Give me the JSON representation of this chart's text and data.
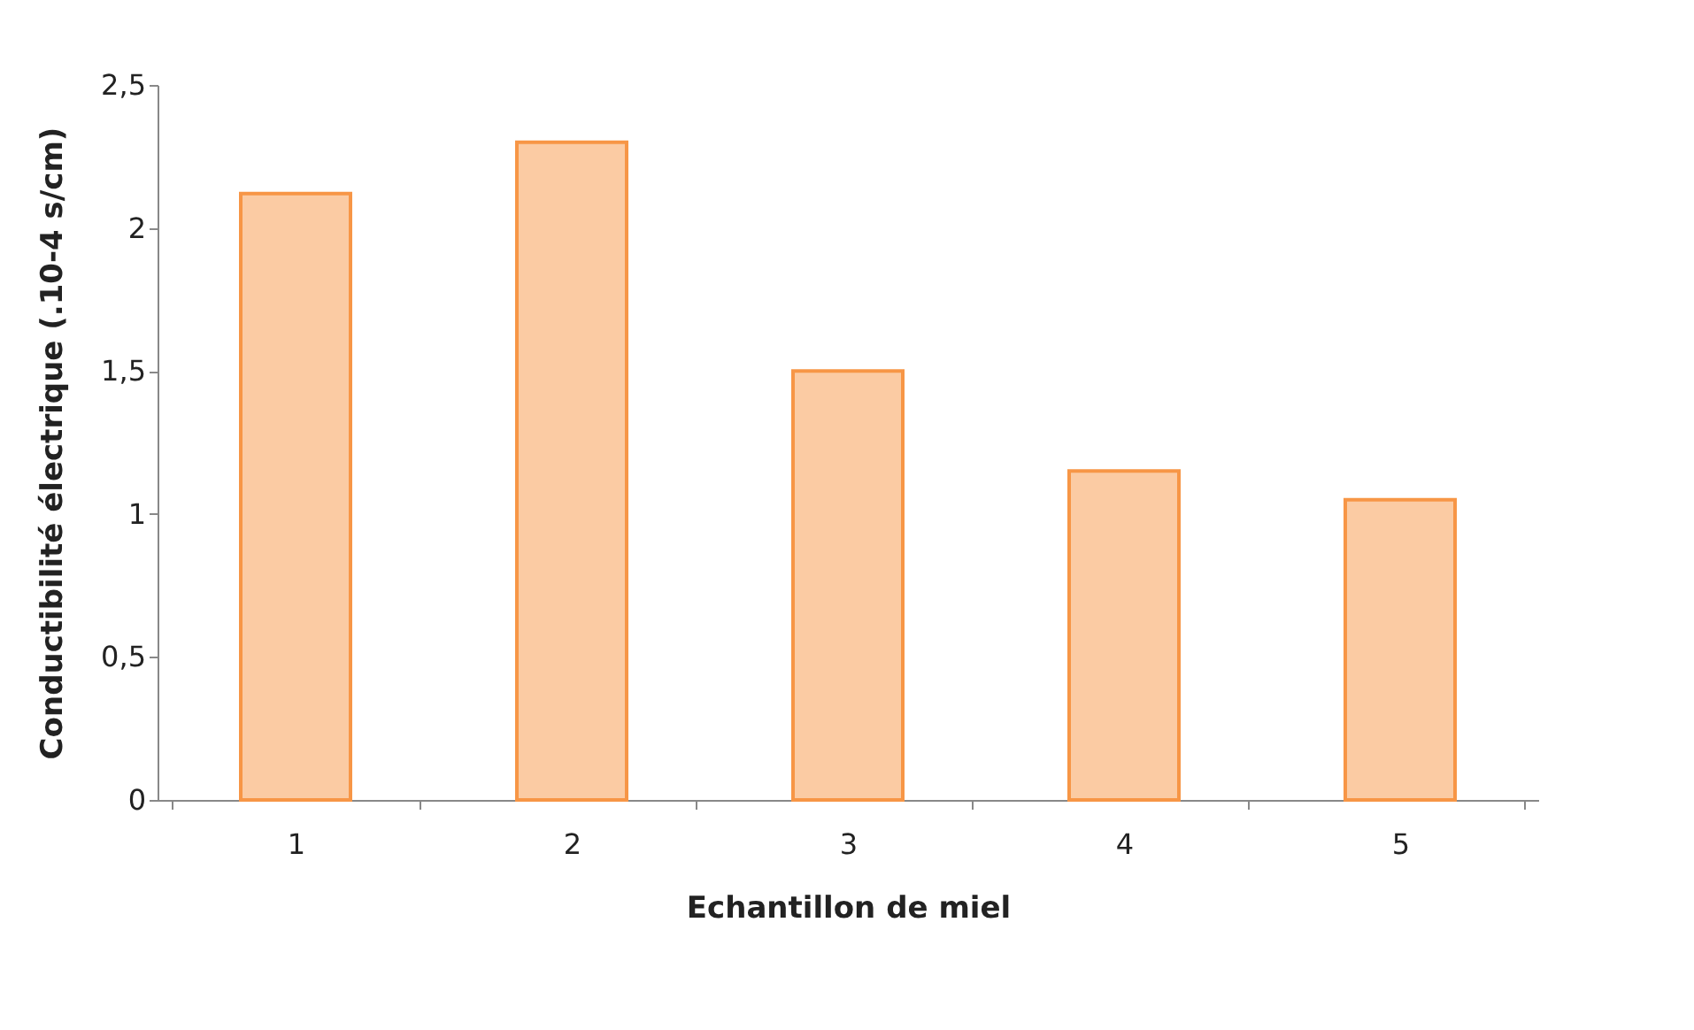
{
  "chart_data": {
    "type": "bar",
    "xlabel": "Echantillon de miel",
    "ylabel": "Conductibilité électrique (.10-4 s/cm)",
    "categories": [
      "1",
      "2",
      "3",
      "4",
      "5"
    ],
    "values": [
      2.12,
      2.3,
      1.5,
      1.15,
      1.05
    ],
    "color": "#fbcba3",
    "ylim": [
      0,
      2.5
    ],
    "yticks": [
      0,
      {
        "value": 0.5,
        "label": "0,5"
      },
      1,
      {
        "value": 1.5,
        "label": "1,5"
      },
      2,
      {
        "value": 2.5,
        "label": "2,5"
      }
    ],
    "grid": false
  }
}
